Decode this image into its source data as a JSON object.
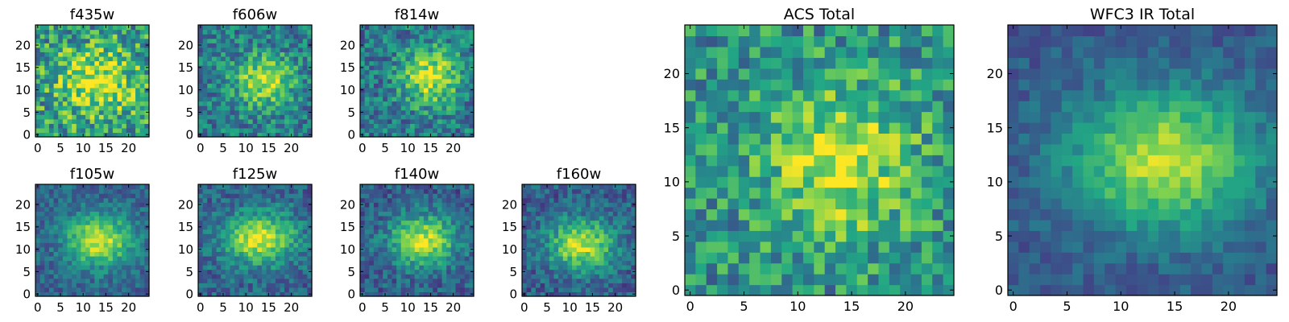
{
  "figure": {
    "colormap": "viridis",
    "colormap_stops": [
      "#440154",
      "#414487",
      "#2a788e",
      "#22a884",
      "#7ad151",
      "#fde725"
    ],
    "frame_color": "#000000",
    "background": "#ffffff"
  },
  "chart_data": [
    {
      "type": "heatmap",
      "title": "f435w",
      "x_ticks": [
        "0",
        "5",
        "10",
        "15",
        "20"
      ],
      "y_ticks": [
        "0",
        "5",
        "10",
        "15",
        "20"
      ],
      "xlim": [
        -0.5,
        24.5
      ],
      "ylim": [
        -0.5,
        24.5
      ],
      "grid": false,
      "shape": [
        25,
        25
      ],
      "signal": {
        "peak": 0.42,
        "cx": 13.0,
        "cy": 12.0,
        "sx": 6.0,
        "sy": 5.0,
        "base": 0.55,
        "noise": 0.3,
        "seed": 11
      }
    },
    {
      "type": "heatmap",
      "title": "f606w",
      "x_ticks": [
        "0",
        "5",
        "10",
        "15",
        "20"
      ],
      "y_ticks": [
        "0",
        "5",
        "10",
        "15",
        "20"
      ],
      "xlim": [
        -0.5,
        24.5
      ],
      "ylim": [
        -0.5,
        24.5
      ],
      "grid": false,
      "shape": [
        25,
        25
      ],
      "signal": {
        "peak": 0.48,
        "cx": 14.0,
        "cy": 12.0,
        "sx": 4.5,
        "sy": 4.0,
        "base": 0.42,
        "noise": 0.22,
        "seed": 23
      }
    },
    {
      "type": "heatmap",
      "title": "f814w",
      "x_ticks": [
        "0",
        "5",
        "10",
        "15",
        "20"
      ],
      "y_ticks": [
        "0",
        "5",
        "10",
        "15",
        "20"
      ],
      "xlim": [
        -0.5,
        24.5
      ],
      "ylim": [
        -0.5,
        24.5
      ],
      "grid": false,
      "shape": [
        25,
        25
      ],
      "signal": {
        "peak": 0.52,
        "cx": 15.0,
        "cy": 13.0,
        "sx": 4.5,
        "sy": 4.5,
        "base": 0.4,
        "noise": 0.22,
        "seed": 37
      }
    },
    {
      "type": "heatmap",
      "title": "f105w",
      "x_ticks": [
        "0",
        "5",
        "10",
        "15",
        "20"
      ],
      "y_ticks": [
        "0",
        "5",
        "10",
        "15",
        "20"
      ],
      "xlim": [
        -0.5,
        24.5
      ],
      "ylim": [
        -0.5,
        24.5
      ],
      "grid": false,
      "shape": [
        25,
        25
      ],
      "signal": {
        "peak": 0.62,
        "cx": 13.5,
        "cy": 12.0,
        "sx": 5.0,
        "sy": 4.0,
        "base": 0.32,
        "noise": 0.14,
        "seed": 41
      }
    },
    {
      "type": "heatmap",
      "title": "f125w",
      "x_ticks": [
        "0",
        "5",
        "10",
        "15",
        "20"
      ],
      "y_ticks": [
        "0",
        "5",
        "10",
        "15",
        "20"
      ],
      "xlim": [
        -0.5,
        24.5
      ],
      "ylim": [
        -0.5,
        24.5
      ],
      "grid": false,
      "shape": [
        25,
        25
      ],
      "signal": {
        "peak": 0.62,
        "cx": 13.0,
        "cy": 12.5,
        "sx": 5.5,
        "sy": 4.0,
        "base": 0.32,
        "noise": 0.16,
        "seed": 53
      }
    },
    {
      "type": "heatmap",
      "title": "f140w",
      "x_ticks": [
        "0",
        "5",
        "10",
        "15",
        "20"
      ],
      "y_ticks": [
        "0",
        "5",
        "10",
        "15",
        "20"
      ],
      "xlim": [
        -0.5,
        24.5
      ],
      "ylim": [
        -0.5,
        24.5
      ],
      "grid": false,
      "shape": [
        25,
        25
      ],
      "signal": {
        "peak": 0.62,
        "cx": 13.5,
        "cy": 12.0,
        "sx": 5.0,
        "sy": 4.0,
        "base": 0.3,
        "noise": 0.16,
        "seed": 67
      }
    },
    {
      "type": "heatmap",
      "title": "f160w",
      "x_ticks": [
        "0",
        "5",
        "10",
        "15",
        "20"
      ],
      "y_ticks": [
        "0",
        "5",
        "10",
        "15",
        "20"
      ],
      "xlim": [
        -0.5,
        24.5
      ],
      "ylim": [
        -0.5,
        24.5
      ],
      "grid": false,
      "shape": [
        25,
        25
      ],
      "signal": {
        "peak": 0.62,
        "cx": 12.5,
        "cy": 11.0,
        "sx": 5.0,
        "sy": 4.0,
        "base": 0.3,
        "noise": 0.16,
        "seed": 79
      }
    },
    {
      "type": "heatmap",
      "title": "ACS Total",
      "x_ticks": [
        "0",
        "5",
        "10",
        "15",
        "20"
      ],
      "y_ticks": [
        "0",
        "5",
        "10",
        "15",
        "20"
      ],
      "xlim": [
        -0.5,
        24.5
      ],
      "ylim": [
        -0.5,
        24.5
      ],
      "grid": false,
      "shape": [
        25,
        25
      ],
      "signal": {
        "peak": 0.42,
        "cx": 14.0,
        "cy": 12.0,
        "sx": 5.0,
        "sy": 5.0,
        "base": 0.5,
        "noise": 0.24,
        "seed": 97
      }
    },
    {
      "type": "heatmap",
      "title": "WFC3 IR Total",
      "x_ticks": [
        "0",
        "5",
        "10",
        "15",
        "20"
      ],
      "y_ticks": [
        "0",
        "5",
        "10",
        "15",
        "20"
      ],
      "xlim": [
        -0.5,
        24.5
      ],
      "ylim": [
        -0.5,
        24.5
      ],
      "grid": false,
      "shape": [
        25,
        25
      ],
      "signal": {
        "peak": 0.62,
        "cx": 14.0,
        "cy": 12.0,
        "sx": 6.0,
        "sy": 4.5,
        "base": 0.28,
        "noise": 0.1,
        "seed": 109
      }
    }
  ]
}
